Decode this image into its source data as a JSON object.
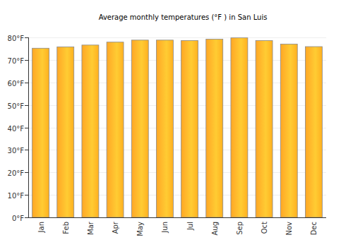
{
  "chart_data": {
    "type": "bar",
    "title": "Average monthly temperatures (°F ) in San Luis",
    "categories": [
      "Jan",
      "Feb",
      "Mar",
      "Apr",
      "May",
      "Jun",
      "Jul",
      "Aug",
      "Sep",
      "Oct",
      "Nov",
      "Dec"
    ],
    "values": [
      75.2,
      75.8,
      76.6,
      77.9,
      78.8,
      78.8,
      78.6,
      79.2,
      79.8,
      78.6,
      77.0,
      75.9
    ],
    "color": "#ffa726",
    "ylim": [
      0,
      80
    ],
    "yticks": [
      {
        "value": 0,
        "label": "0°F"
      },
      {
        "value": 10,
        "label": "10°F"
      },
      {
        "value": 20,
        "label": "20°F"
      },
      {
        "value": 30,
        "label": "30°F"
      },
      {
        "value": 40,
        "label": "40°F"
      },
      {
        "value": 50,
        "label": "50°F"
      },
      {
        "value": 60,
        "label": "60°F"
      },
      {
        "value": 70,
        "label": "70°F"
      },
      {
        "value": 80,
        "label": "80°F"
      }
    ],
    "grid": true
  }
}
